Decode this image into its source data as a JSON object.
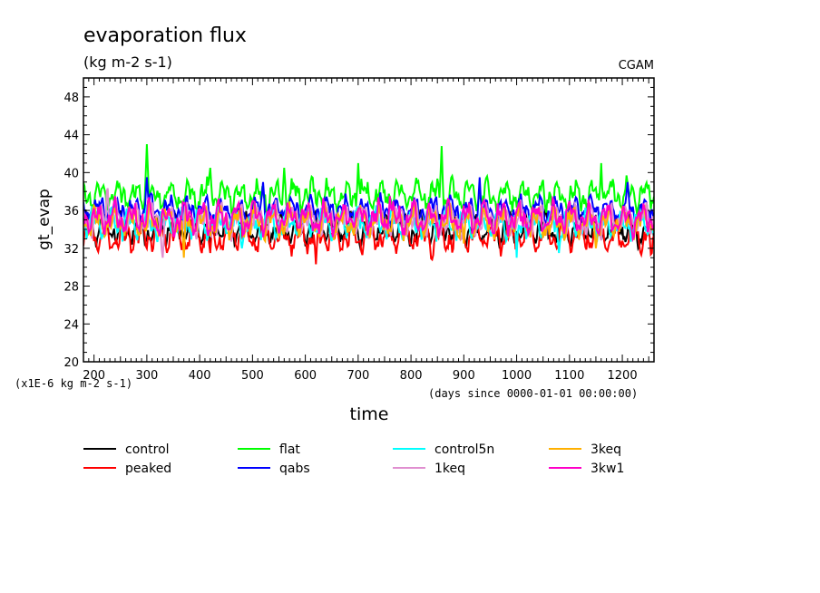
{
  "chart_data": {
    "type": "line",
    "title": "evaporation flux",
    "subtitle": "(kg m-2 s-1)",
    "source_label": "CGAM",
    "ylabel": "gt_evap",
    "xlabel": "time",
    "y_unit_note": "(x1E-6 kg m-2 s-1)",
    "x_unit_note": "(days since 0000-01-01 00:00:00)",
    "xlim": [
      180,
      1260
    ],
    "ylim": [
      20,
      50
    ],
    "x_ticks": [
      200,
      300,
      400,
      500,
      600,
      700,
      800,
      900,
      1000,
      1100,
      1200
    ],
    "y_ticks": [
      20,
      24,
      28,
      32,
      36,
      40,
      44,
      48
    ],
    "grid": false,
    "legend_position": "bottom",
    "series": [
      {
        "name": "control",
        "color": "#000000",
        "mean": 34.0,
        "amp": 1.4,
        "spikes": [
          [
            180,
            34
          ],
          [
            260,
            33
          ],
          [
            420,
            32
          ],
          [
            640,
            33
          ],
          [
            880,
            33
          ],
          [
            1230,
            32
          ]
        ]
      },
      {
        "name": "peaked",
        "color": "#ff0000",
        "mean": 33.2,
        "amp": 1.5,
        "spikes": [
          [
            230,
            32
          ],
          [
            420,
            31.5
          ],
          [
            620,
            30.3
          ],
          [
            840,
            30.8
          ],
          [
            1255,
            30.3
          ]
        ]
      },
      {
        "name": "flat",
        "color": "#00ff00",
        "mean": 37.6,
        "amp": 1.5,
        "spikes": [
          [
            300,
            43.0
          ],
          [
            420,
            40.5
          ],
          [
            560,
            40.5
          ],
          [
            700,
            41.0
          ],
          [
            858,
            42.8
          ],
          [
            1160,
            41.0
          ]
        ]
      },
      {
        "name": "qabs",
        "color": "#0000ff",
        "mean": 36.0,
        "amp": 1.3,
        "spikes": [
          [
            300,
            39.5
          ],
          [
            520,
            39.0
          ],
          [
            930,
            39.5
          ],
          [
            1210,
            39.0
          ]
        ]
      },
      {
        "name": "control5n",
        "color": "#00ffff",
        "mean": 34.6,
        "amp": 1.4,
        "spikes": [
          [
            480,
            32.0
          ],
          [
            1000,
            31.0
          ],
          [
            1080,
            31.5
          ]
        ]
      },
      {
        "name": "1keq",
        "color": "#e08fd0",
        "mean": 35.0,
        "amp": 1.5,
        "spikes": [
          [
            225,
            39.5
          ],
          [
            330,
            31.0
          ],
          [
            720,
            33.0
          ]
        ]
      },
      {
        "name": "3keq",
        "color": "#ffb000",
        "mean": 34.8,
        "amp": 1.5,
        "spikes": [
          [
            200,
            36.5
          ],
          [
            370,
            31.0
          ],
          [
            900,
            32.5
          ],
          [
            1150,
            32.0
          ]
        ]
      },
      {
        "name": "3kw1",
        "color": "#ff00c8",
        "mean": 35.2,
        "amp": 1.5,
        "spikes": [
          [
            240,
            37.5
          ],
          [
            500,
            37.0
          ],
          [
            760,
            37.5
          ],
          [
            1100,
            37.0
          ]
        ]
      }
    ]
  }
}
